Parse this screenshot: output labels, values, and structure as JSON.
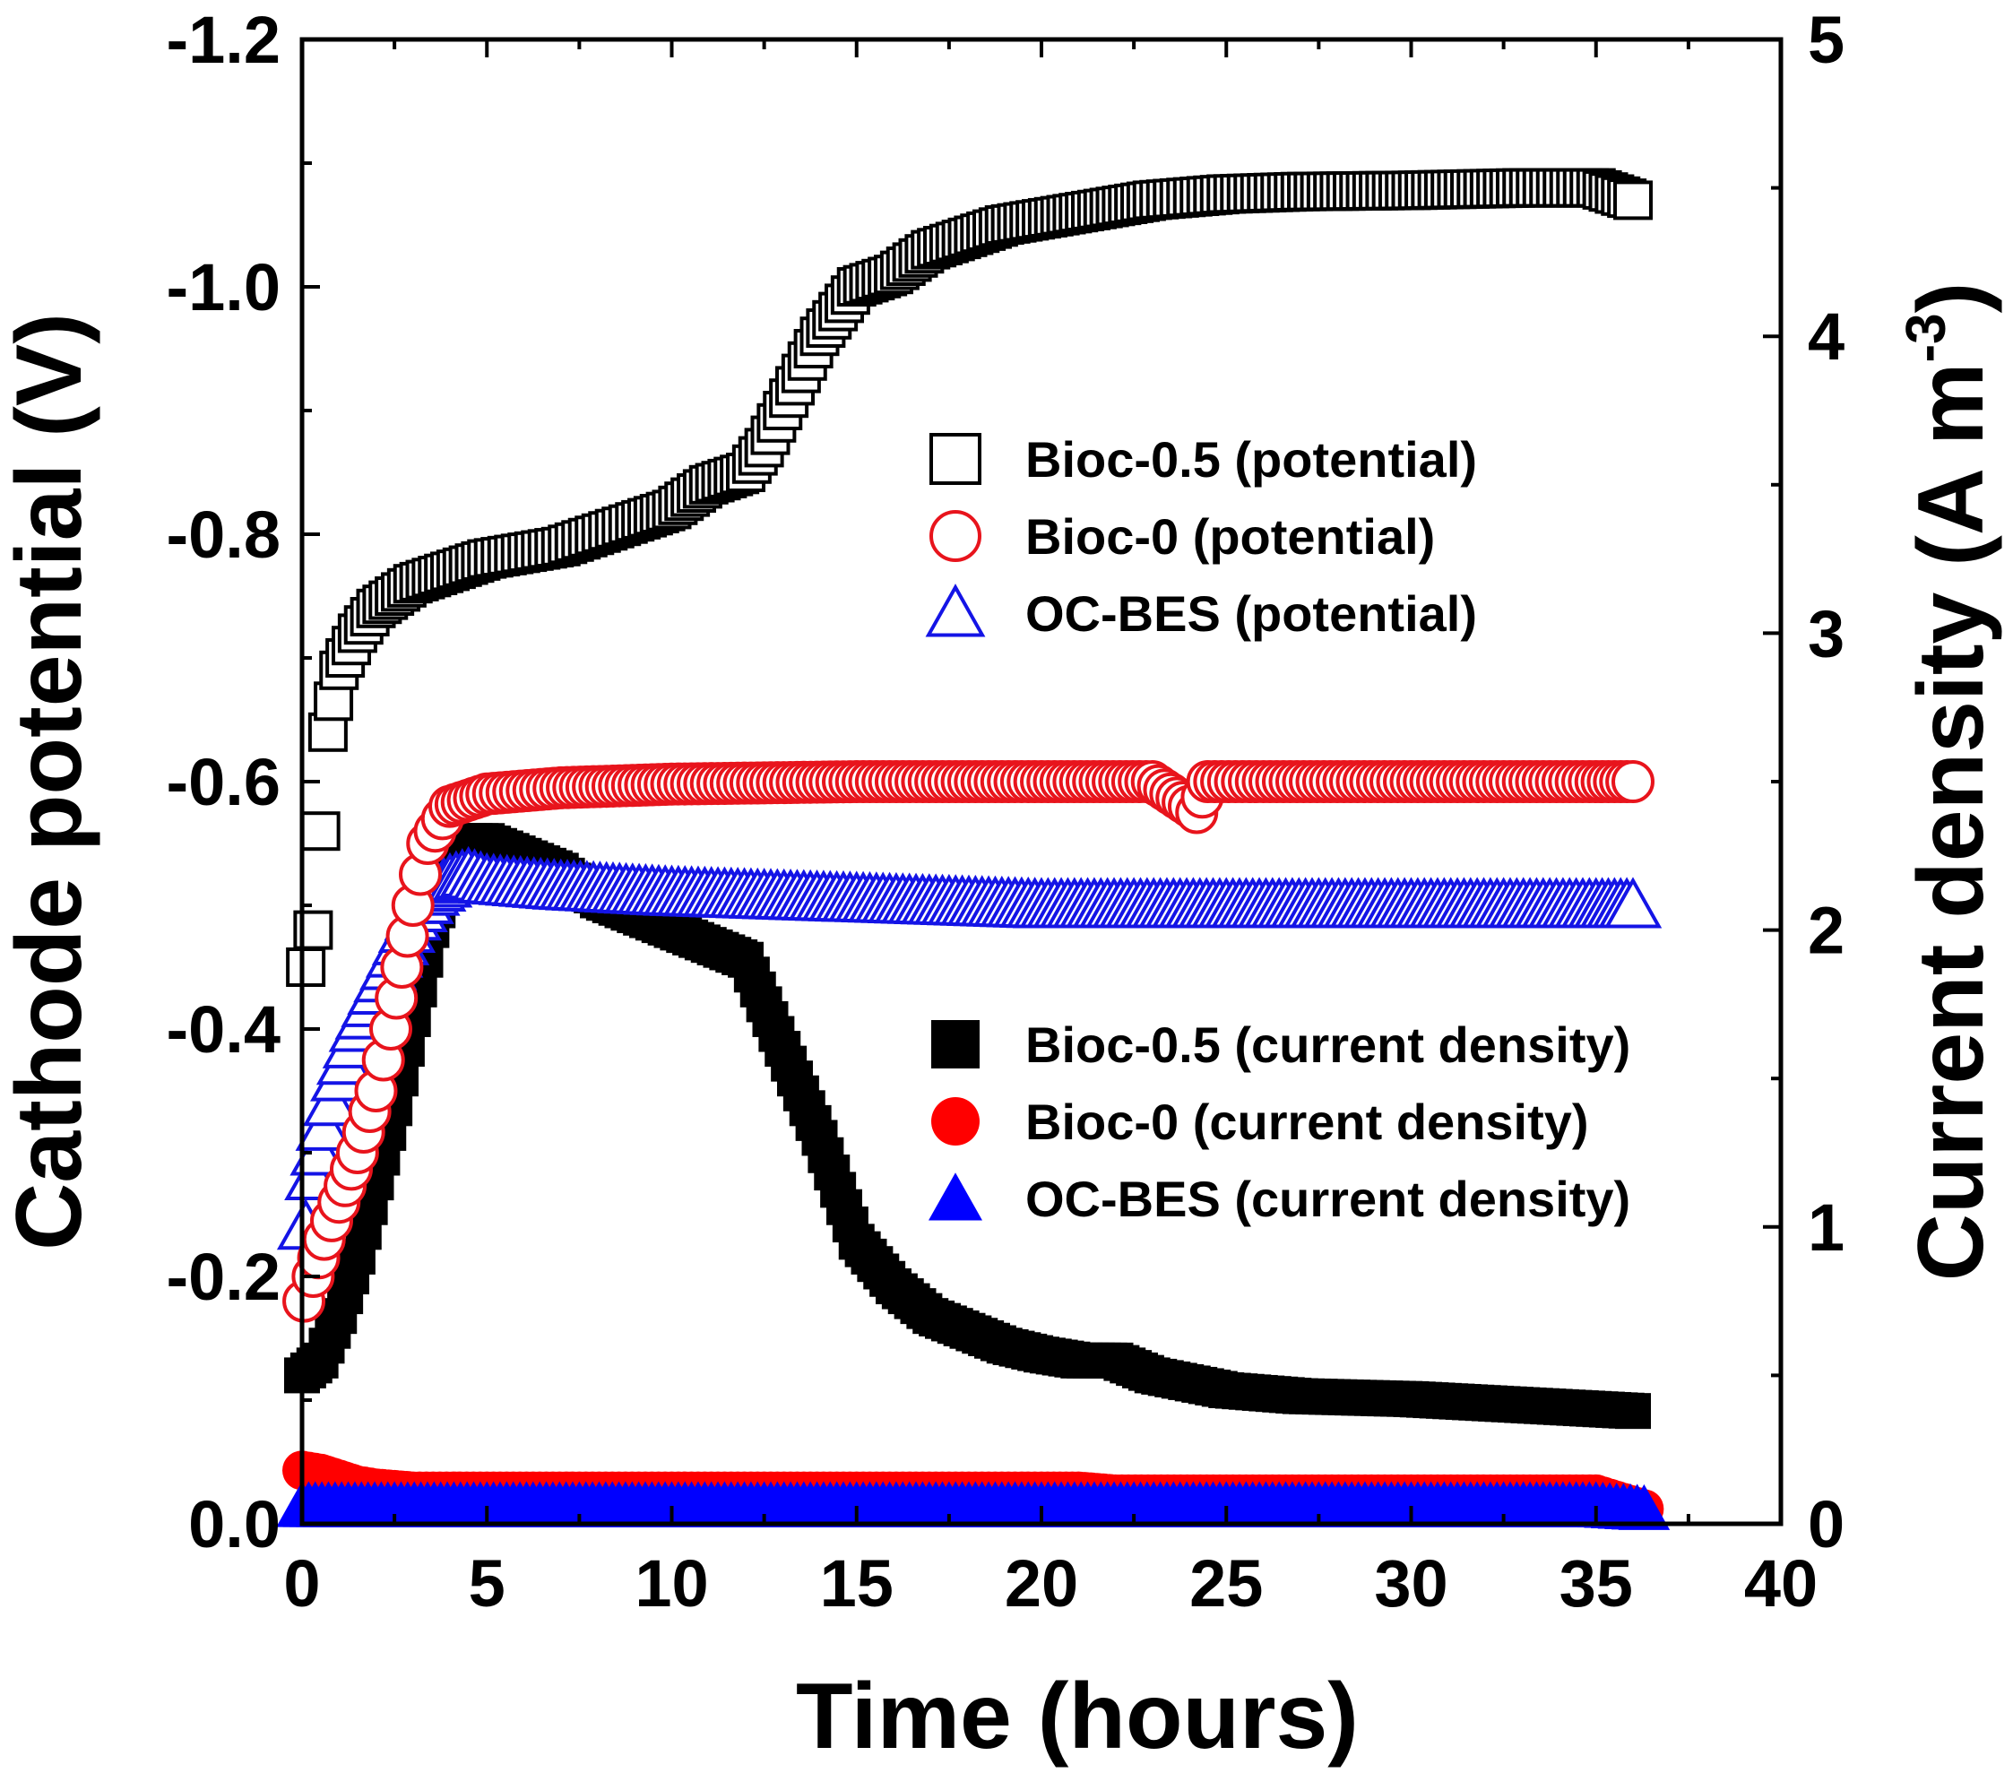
{
  "chart_data": {
    "type": "scatter",
    "xlabel": "Time (hours)",
    "ylabel_left": "Cathode potential (V)",
    "ylabel_right_base": "Current density (A m",
    "ylabel_right_sup": "-3",
    "ylabel_right_close": ")",
    "xlim": [
      0,
      40
    ],
    "ylim_left": [
      0.0,
      -1.2
    ],
    "ylim_right": [
      0,
      5
    ],
    "x_ticks": [
      0,
      5,
      10,
      15,
      20,
      25,
      30,
      35,
      40
    ],
    "x_tick_labels": [
      "0",
      "5",
      "10",
      "15",
      "20",
      "25",
      "30",
      "35",
      "40"
    ],
    "y_left_ticks": [
      0.0,
      -0.2,
      -0.4,
      -0.6,
      -0.8,
      -1.0,
      -1.2
    ],
    "y_left_tick_labels": [
      "0.0",
      "-0.2",
      "-0.4",
      "-0.6",
      "-0.8",
      "-1.0",
      "-1.2"
    ],
    "y_right_ticks": [
      0,
      1,
      2,
      3,
      4,
      5
    ],
    "y_right_tick_labels": [
      "0",
      "1",
      "2",
      "3",
      "4",
      "5"
    ],
    "legend_potential": [
      {
        "label": "Bioc-0.5 (potential)",
        "marker": "square-open",
        "color": "#000000"
      },
      {
        "label": "Bioc-0 (potential)",
        "marker": "circle-open",
        "color": "#e8141c"
      },
      {
        "label": "OC-BES (potential)",
        "marker": "triangle-open",
        "color": "#1414e6"
      }
    ],
    "legend_current": [
      {
        "label": "Bioc-0.5 (current density)",
        "marker": "square-filled",
        "color": "#000000"
      },
      {
        "label": "Bioc-0 (current density)",
        "marker": "circle-filled",
        "color": "#ff0000"
      },
      {
        "label": "OC-BES (current density)",
        "marker": "triangle-filled",
        "color": "#0000ff"
      }
    ],
    "series": [
      {
        "name": "Bioc-0.5 (potential)",
        "axis": "left",
        "marker": "square-open",
        "color": "#000000",
        "x": [
          0.1,
          0.3,
          0.5,
          0.7,
          1,
          1.5,
          2,
          3,
          4,
          5,
          7,
          9,
          10,
          11,
          12,
          12.5,
          13,
          13.5,
          14,
          14.5,
          15,
          16,
          17,
          18,
          19,
          20,
          21,
          22,
          23,
          25,
          27,
          30,
          33,
          35,
          36
        ],
        "y": [
          -0.45,
          -0.48,
          -0.56,
          -0.64,
          -0.69,
          -0.72,
          -0.74,
          -0.76,
          -0.77,
          -0.78,
          -0.79,
          -0.81,
          -0.82,
          -0.84,
          -0.85,
          -0.87,
          -0.9,
          -0.93,
          -0.96,
          -0.98,
          -1.0,
          -1.01,
          -1.03,
          -1.04,
          -1.05,
          -1.055,
          -1.06,
          -1.065,
          -1.07,
          -1.075,
          -1.077,
          -1.078,
          -1.08,
          -1.08,
          -1.07
        ]
      },
      {
        "name": "Bioc-0 (potential)",
        "axis": "left",
        "marker": "circle-open",
        "color": "#e8141c",
        "x": [
          0.05,
          0.3,
          0.6,
          1,
          1.5,
          2,
          2.4,
          2.7,
          3,
          3.4,
          4,
          5,
          7,
          10,
          15,
          20,
          23,
          24,
          24.2,
          24.5,
          26,
          30,
          35,
          36
        ],
        "y": [
          -0.18,
          -0.2,
          -0.23,
          -0.26,
          -0.3,
          -0.35,
          -0.4,
          -0.45,
          -0.5,
          -0.55,
          -0.58,
          -0.59,
          -0.595,
          -0.598,
          -0.6,
          -0.6,
          -0.6,
          -0.58,
          -0.575,
          -0.6,
          -0.6,
          -0.6,
          -0.6,
          -0.6
        ]
      },
      {
        "name": "OC-BES (potential)",
        "axis": "left",
        "marker": "triangle-open",
        "color": "#1414e6",
        "x": [
          0.1,
          0.3,
          0.6,
          1,
          1.5,
          2,
          2.5,
          3,
          3.5,
          4,
          4.5,
          5,
          7,
          10,
          15,
          20,
          25,
          30,
          35,
          36
        ],
        "y": [
          -0.24,
          -0.28,
          -0.32,
          -0.36,
          -0.4,
          -0.43,
          -0.46,
          -0.49,
          -0.51,
          -0.52,
          -0.525,
          -0.52,
          -0.515,
          -0.51,
          -0.505,
          -0.5,
          -0.5,
          -0.5,
          -0.5,
          -0.5
        ]
      },
      {
        "name": "Bioc-0.5 (current density)",
        "axis": "right",
        "marker": "square-filled",
        "color": "#000000",
        "x": [
          0,
          0.5,
          1,
          1.5,
          2,
          2.5,
          3,
          3.5,
          4,
          4.5,
          5,
          6,
          7,
          8,
          9,
          10,
          11,
          12,
          13,
          14,
          15,
          16,
          17,
          18,
          19,
          20,
          21,
          22,
          23,
          25,
          27,
          30,
          33,
          36
        ],
        "y": [
          0.5,
          0.55,
          0.7,
          0.9,
          1.15,
          1.4,
          1.7,
          2.0,
          2.2,
          2.3,
          2.3,
          2.25,
          2.2,
          2.1,
          2.05,
          2.0,
          1.95,
          1.9,
          1.6,
          1.3,
          0.95,
          0.8,
          0.7,
          0.65,
          0.6,
          0.57,
          0.55,
          0.55,
          0.5,
          0.45,
          0.43,
          0.42,
          0.4,
          0.38
        ]
      },
      {
        "name": "Bioc-0 (current density)",
        "axis": "right",
        "marker": "circle-filled",
        "color": "#ff0000",
        "x": [
          0,
          0.5,
          1,
          1.5,
          2,
          3,
          5,
          10,
          15,
          20,
          21,
          22,
          25,
          30,
          35,
          36.3
        ],
        "y": [
          0.18,
          0.17,
          0.15,
          0.13,
          0.12,
          0.11,
          0.11,
          0.11,
          0.11,
          0.11,
          0.11,
          0.1,
          0.1,
          0.1,
          0.1,
          0.05
        ]
      },
      {
        "name": "OC-BES (current density)",
        "axis": "right",
        "marker": "triangle-filled",
        "color": "#0000ff",
        "x": [
          0,
          5,
          10,
          15,
          20,
          25,
          30,
          35,
          36.3
        ],
        "y": [
          0.06,
          0.06,
          0.06,
          0.06,
          0.06,
          0.06,
          0.06,
          0.06,
          0.05
        ]
      }
    ]
  }
}
